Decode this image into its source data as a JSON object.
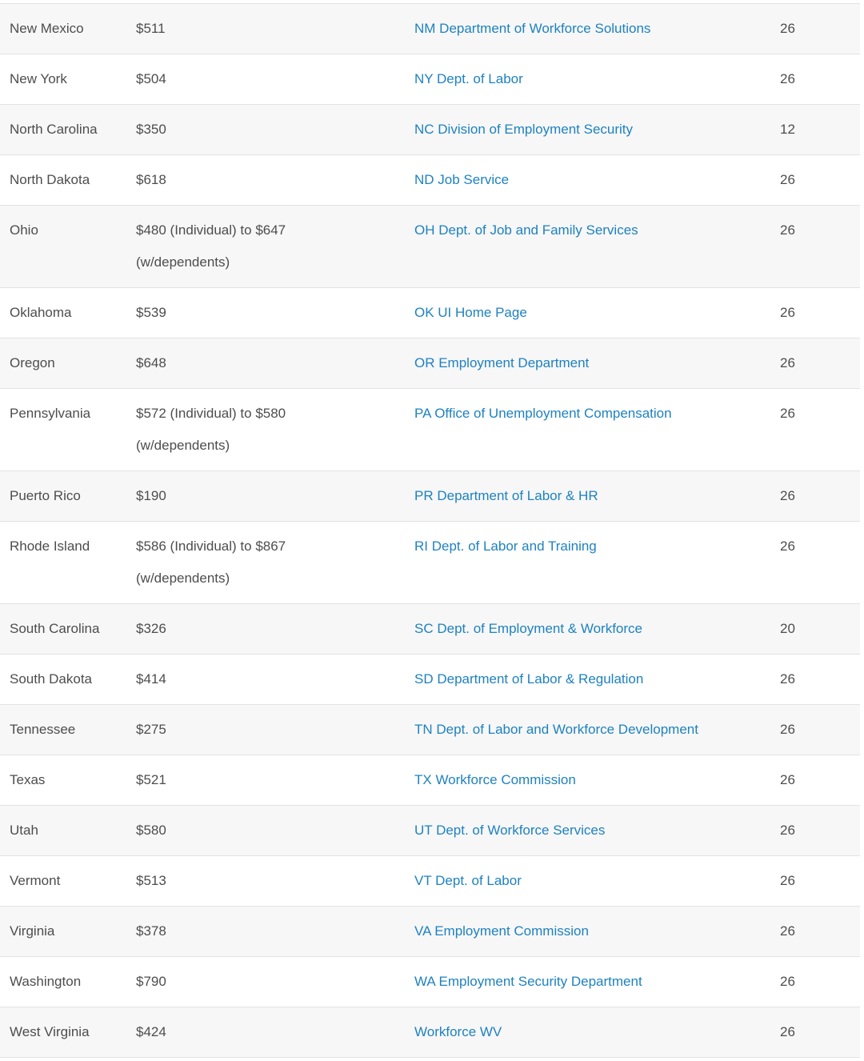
{
  "colors": {
    "stripe": "#f7f7f7",
    "rowbg": "#ffffff",
    "border": "#e2e2e2",
    "text": "#4d4d4d",
    "link": "#1e82c0"
  },
  "table": {
    "rows": [
      {
        "state": "New Mexico",
        "amount": "$511",
        "amount_note": "",
        "link": "NM Department of Workforce Solutions",
        "weeks": 26
      },
      {
        "state": "New York",
        "amount": "$504",
        "amount_note": "",
        "link": "NY Dept. of Labor",
        "weeks": 26
      },
      {
        "state": "North Carolina",
        "amount": "$350",
        "amount_note": "",
        "link": "NC Division of Employment Security",
        "weeks": 12
      },
      {
        "state": "North Dakota",
        "amount": "$618",
        "amount_note": "",
        "link": "ND Job Service",
        "weeks": 26
      },
      {
        "state": "Ohio",
        "amount": "$480 (Individual) to $647",
        "amount_note": "(w/dependents)",
        "link": "OH Dept. of Job and Family Services",
        "weeks": 26
      },
      {
        "state": "Oklahoma",
        "amount": "$539",
        "amount_note": "",
        "link": "OK UI Home Page",
        "weeks": 26
      },
      {
        "state": "Oregon",
        "amount": "$648",
        "amount_note": "",
        "link": "OR Employment Department",
        "weeks": 26
      },
      {
        "state": "Pennsylvania",
        "amount": "$572 (Individual) to $580",
        "amount_note": "(w/dependents)",
        "link": "PA Office of Unemployment Compensation",
        "weeks": 26
      },
      {
        "state": "Puerto Rico",
        "amount": "$190",
        "amount_note": "",
        "link": "PR Department of Labor & HR",
        "weeks": 26
      },
      {
        "state": "Rhode Island",
        "amount": "$586 (Individual) to $867",
        "amount_note": "(w/dependents)",
        "link": "RI Dept. of Labor and Training",
        "weeks": 26
      },
      {
        "state": "South Carolina",
        "amount": "$326",
        "amount_note": "",
        "link": "SC Dept. of Employment & Workforce",
        "weeks": 20
      },
      {
        "state": "South Dakota",
        "amount": "$414",
        "amount_note": "",
        "link": "SD Department of Labor & Regulation",
        "weeks": 26
      },
      {
        "state": "Tennessee",
        "amount": "$275",
        "amount_note": "",
        "link": "TN Dept. of Labor and Workforce Development",
        "weeks": 26
      },
      {
        "state": "Texas",
        "amount": "$521",
        "amount_note": "",
        "link": "TX Workforce Commission",
        "weeks": 26
      },
      {
        "state": "Utah",
        "amount": "$580",
        "amount_note": "",
        "link": "UT Dept. of Workforce Services",
        "weeks": 26
      },
      {
        "state": "Vermont",
        "amount": "$513",
        "amount_note": "",
        "link": "VT Dept. of Labor",
        "weeks": 26
      },
      {
        "state": "Virginia",
        "amount": "$378",
        "amount_note": "",
        "link": "VA Employment Commission",
        "weeks": 26
      },
      {
        "state": "Washington",
        "amount": "$790",
        "amount_note": "",
        "link": "WA Employment Security Department",
        "weeks": 26
      },
      {
        "state": "West Virginia",
        "amount": "$424",
        "amount_note": "",
        "link": "Workforce WV",
        "weeks": 26
      }
    ]
  }
}
